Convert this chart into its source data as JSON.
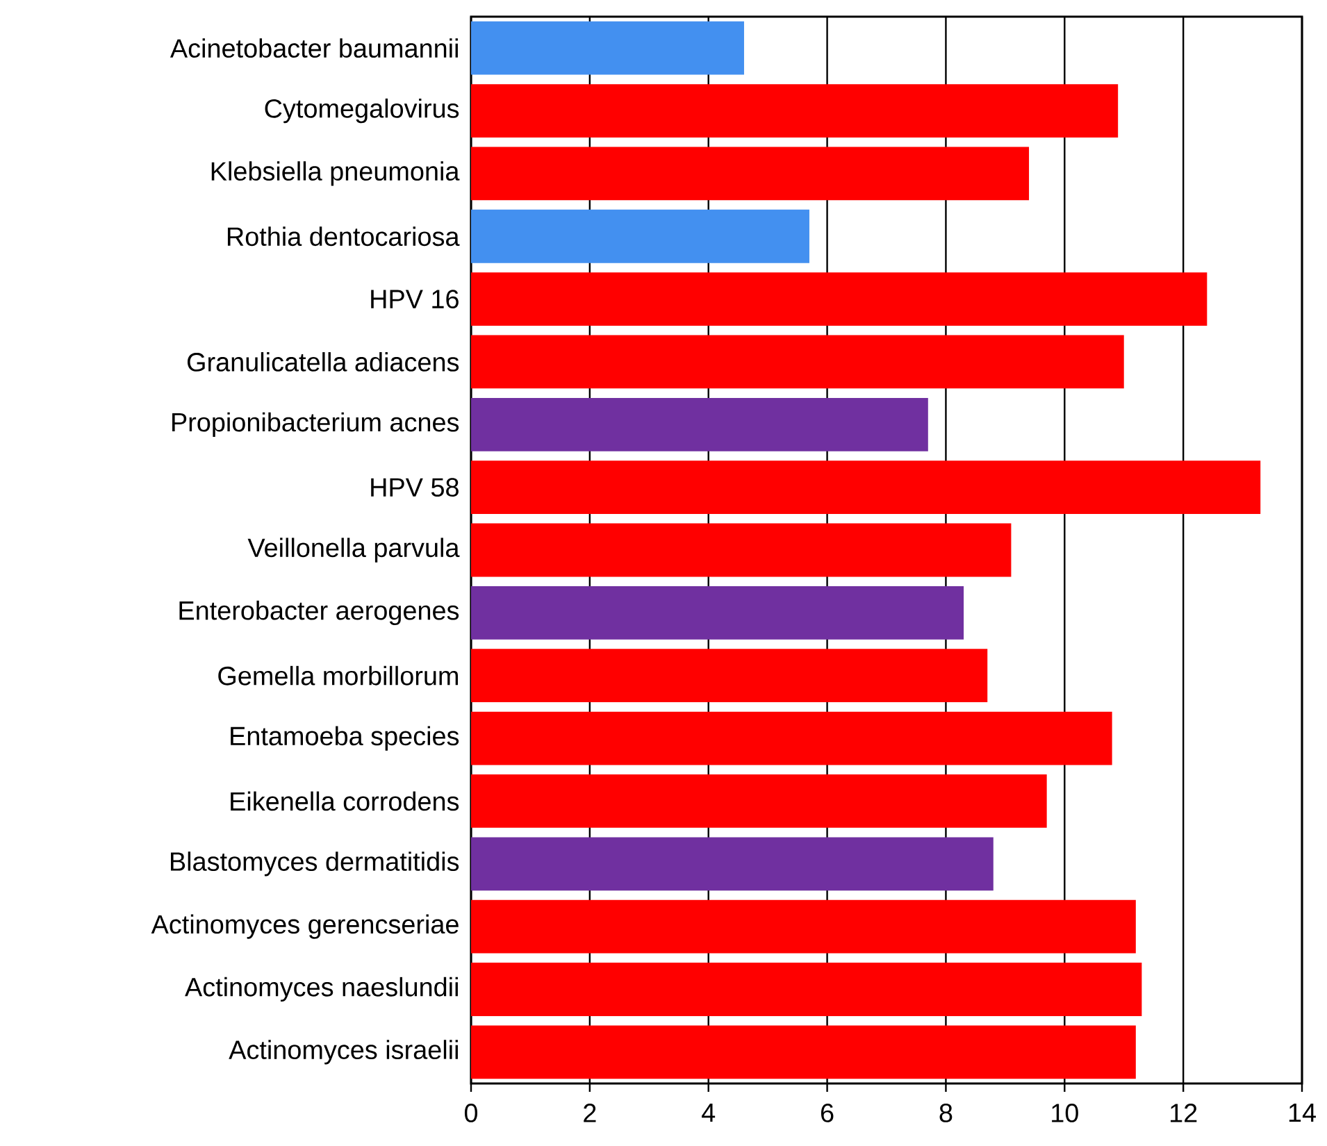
{
  "chart_data": {
    "type": "bar",
    "orientation": "horizontal",
    "categories": [
      "Acinetobacter baumannii",
      "Cytomegalovirus",
      "Klebsiella pneumonia",
      "Rothia dentocariosa",
      "HPV 16",
      "Granulicatella adiacens",
      "Propionibacterium acnes",
      "HPV 58",
      "Veillonella parvula",
      "Enterobacter aerogenes",
      "Gemella morbillorum",
      "Entamoeba species",
      "Eikenella corrodens",
      "Blastomyces dermatitidis",
      "Actinomyces gerencseriae",
      "Actinomyces naeslundii",
      "Actinomyces israelii"
    ],
    "values": [
      4.6,
      10.9,
      9.4,
      5.7,
      12.4,
      11.0,
      7.7,
      13.3,
      9.1,
      8.3,
      8.7,
      10.8,
      9.7,
      8.8,
      11.2,
      11.3,
      11.2
    ],
    "colors": [
      "#4390f0",
      "#ff0000",
      "#ff0000",
      "#4390f0",
      "#ff0000",
      "#ff0000",
      "#7030a0",
      "#ff0000",
      "#ff0000",
      "#7030a0",
      "#ff0000",
      "#ff0000",
      "#ff0000",
      "#7030a0",
      "#ff0000",
      "#ff0000",
      "#ff0000"
    ],
    "xlim": [
      0,
      14
    ],
    "xticks": [
      0,
      2,
      4,
      6,
      8,
      10,
      12,
      14
    ],
    "grid": "x"
  }
}
